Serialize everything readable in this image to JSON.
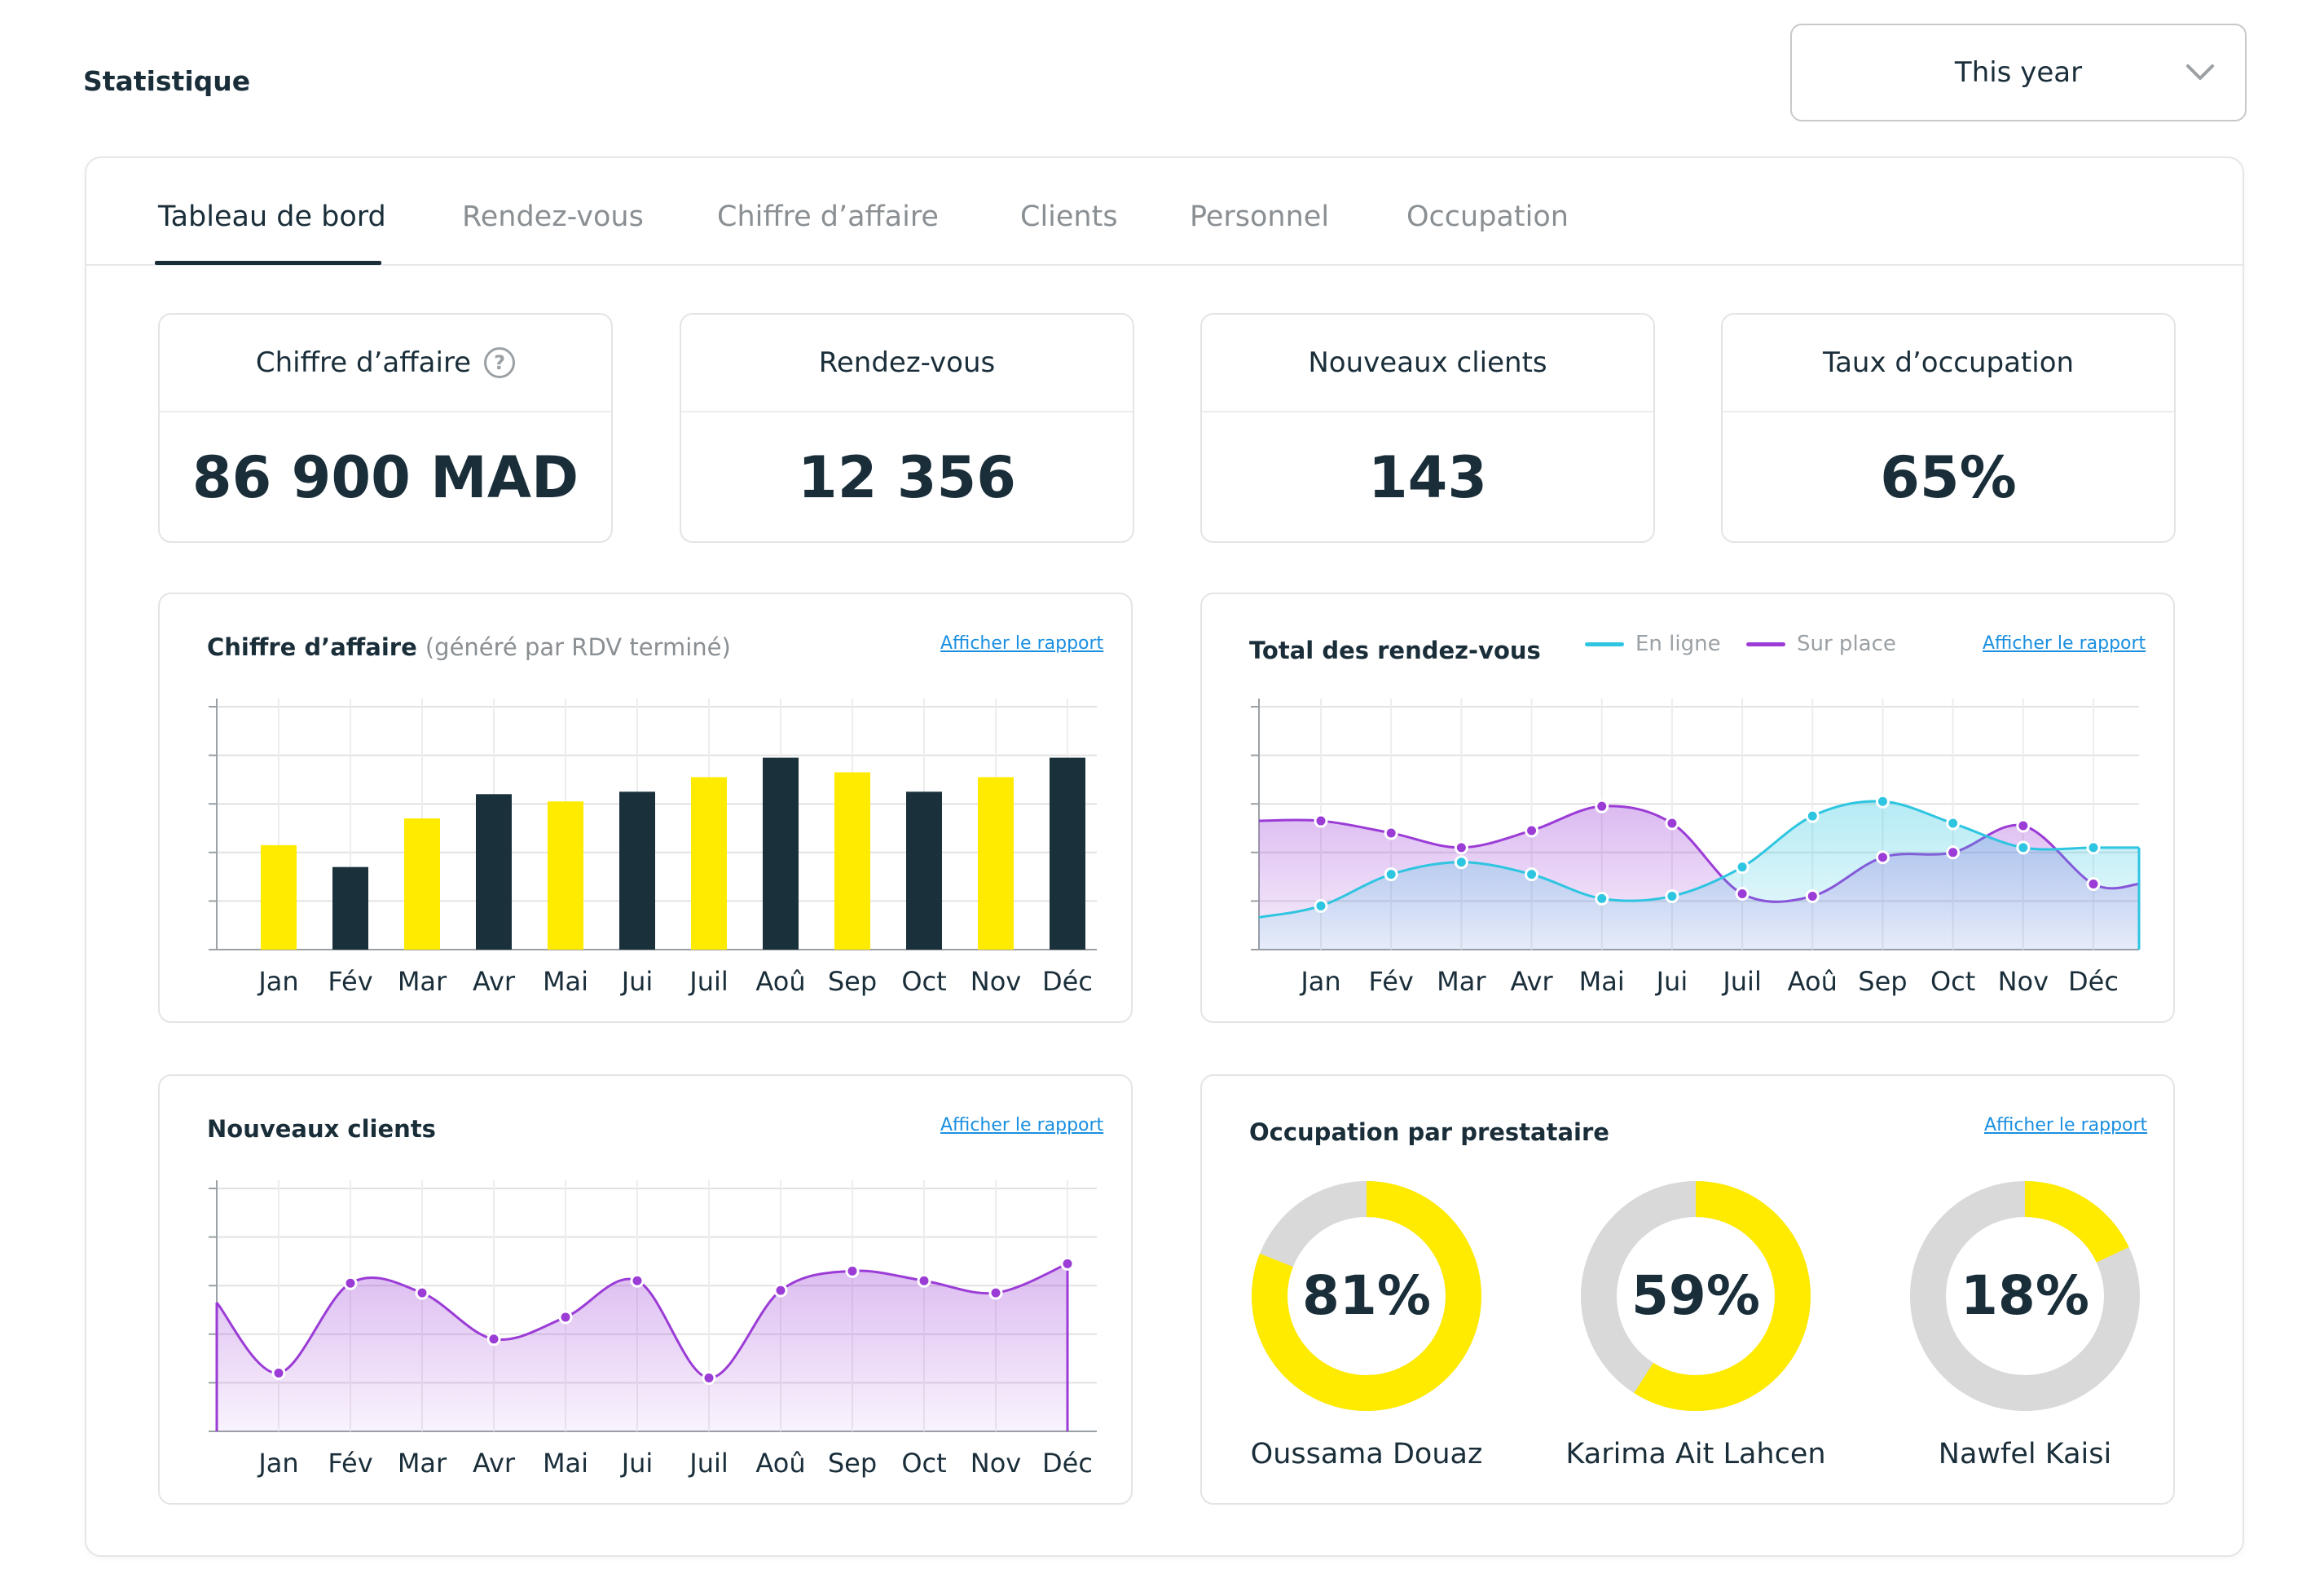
{
  "header": {
    "title": "Statistique",
    "period": "This year"
  },
  "tabs": [
    {
      "label": "Tableau de bord",
      "active": true
    },
    {
      "label": "Rendez-vous",
      "active": false
    },
    {
      "label": "Chiffre d’affaire",
      "active": false
    },
    {
      "label": "Clients",
      "active": false
    },
    {
      "label": "Personnel",
      "active": false
    },
    {
      "label": "Occupation",
      "active": false
    }
  ],
  "kpis": [
    {
      "label": "Chiffre d’affaire",
      "value": "86 900 MAD",
      "help_icon": "question-circle-icon"
    },
    {
      "label": "Rendez-vous",
      "value": "12 356"
    },
    {
      "label": "Nouveaux clients",
      "value": "143"
    },
    {
      "label": "Taux d’occupation",
      "value": "65%"
    }
  ],
  "report_link": "Afficher le rapport",
  "colors": {
    "yellow": "#FFEB00",
    "dark": "#1A313B",
    "cyan": "#2EC5E0",
    "purple": "#9B3CD6",
    "grey": "#D9D9D9"
  },
  "chart_data": [
    {
      "type": "bar",
      "title": "Chiffre d’affaire",
      "subtitle": "(généré par RDV terminé)",
      "categories": [
        "Jan",
        "Fév",
        "Mar",
        "Avr",
        "Mai",
        "Jui",
        "Juil",
        "Aoû",
        "Sep",
        "Oct",
        "Nov",
        "Déc"
      ],
      "values": [
        43,
        34,
        54,
        64,
        61,
        65,
        71,
        79,
        73,
        65,
        71,
        79
      ],
      "bar_colors": [
        "yellow",
        "dark",
        "yellow",
        "dark",
        "yellow",
        "dark",
        "yellow",
        "dark",
        "yellow",
        "dark",
        "yellow",
        "dark"
      ],
      "ylim": [
        0,
        100
      ],
      "grid": true
    },
    {
      "type": "area",
      "title": "Total des rendez-vous",
      "categories": [
        "Jan",
        "Fév",
        "Mar",
        "Avr",
        "Mai",
        "Jui",
        "Juil",
        "Aoû",
        "Sep",
        "Oct",
        "Nov",
        "Déc"
      ],
      "series": [
        {
          "name": "En ligne",
          "color": "cyan",
          "values": [
            18,
            31,
            36,
            31,
            21,
            22,
            34,
            55,
            61,
            52,
            42,
            42
          ]
        },
        {
          "name": "Sur place",
          "color": "purple",
          "values": [
            53,
            48,
            42,
            49,
            59,
            52,
            23,
            22,
            38,
            40,
            51,
            27
          ]
        }
      ],
      "legend_position": "top",
      "ylim": [
        0,
        100
      ],
      "grid": true
    },
    {
      "type": "area",
      "title": "Nouveaux clients",
      "categories": [
        "Jan",
        "Fév",
        "Mar",
        "Avr",
        "Mai",
        "Jui",
        "Juil",
        "Aoû",
        "Sep",
        "Oct",
        "Nov",
        "Déc"
      ],
      "series": [
        {
          "color": "purple",
          "values": [
            24,
            61,
            57,
            38,
            47,
            62,
            22,
            58,
            66,
            62,
            57,
            69
          ]
        }
      ],
      "ylim": [
        0,
        100
      ],
      "grid": true
    },
    {
      "type": "pie",
      "title": "Occupation par prestataire",
      "slices": [
        {
          "name": "Oussama Douaz",
          "value": 81,
          "label": "81%"
        },
        {
          "name": "Karima Ait Lahcen",
          "value": 59,
          "label": "59%"
        },
        {
          "name": "Nawfel Kaisi",
          "value": 18,
          "label": "18%"
        }
      ]
    }
  ]
}
